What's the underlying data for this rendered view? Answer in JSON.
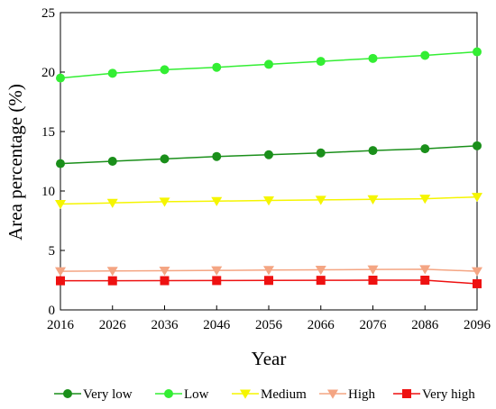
{
  "chart_data": {
    "type": "line",
    "title": "",
    "xlabel": "Year",
    "ylabel": "Area percentage (%)",
    "x": [
      2016,
      2026,
      2036,
      2046,
      2056,
      2066,
      2076,
      2086,
      2096
    ],
    "xticks": [
      "2016",
      "2026",
      "2036",
      "2046",
      "2056",
      "2066",
      "2076",
      "2086",
      "2096"
    ],
    "ylim": [
      0,
      25
    ],
    "yticks": [
      "0",
      "5",
      "10",
      "15",
      "20",
      "25"
    ],
    "grid": false,
    "legend_position": "bottom",
    "series": [
      {
        "name": "Very low",
        "color": "#1a8f1a",
        "marker": "circle",
        "values": [
          12.3,
          12.5,
          12.7,
          12.9,
          13.05,
          13.2,
          13.4,
          13.55,
          13.8
        ]
      },
      {
        "name": "Low",
        "color": "#33ee33",
        "marker": "circle",
        "values": [
          19.5,
          19.9,
          20.2,
          20.4,
          20.65,
          20.9,
          21.15,
          21.4,
          21.7
        ]
      },
      {
        "name": "Medium",
        "color": "#f5f500",
        "marker": "triangle-down",
        "values": [
          8.9,
          9.0,
          9.1,
          9.15,
          9.2,
          9.25,
          9.3,
          9.35,
          9.5
        ]
      },
      {
        "name": "High",
        "color": "#f4a583",
        "marker": "triangle-down",
        "values": [
          3.25,
          3.28,
          3.3,
          3.32,
          3.35,
          3.37,
          3.4,
          3.42,
          3.25
        ]
      },
      {
        "name": "Very high",
        "color": "#ee1111",
        "marker": "square",
        "values": [
          2.45,
          2.45,
          2.46,
          2.47,
          2.48,
          2.49,
          2.5,
          2.5,
          2.2
        ]
      }
    ]
  }
}
